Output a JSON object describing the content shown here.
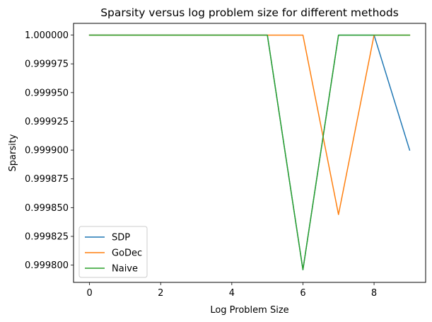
{
  "chart_data": {
    "type": "line",
    "title": "Sparsity versus log problem size for different methods",
    "xlabel": "Log Problem Size",
    "ylabel": "Sparsity",
    "x": [
      0,
      1,
      2,
      3,
      4,
      5,
      6,
      7,
      8,
      9
    ],
    "xlim": [
      -0.45,
      9.45
    ],
    "ylim": [
      0.999785,
      1.0000102
    ],
    "xticks": [
      0,
      2,
      4,
      6,
      8
    ],
    "yticks": [
      0.9998,
      0.999825,
      0.99985,
      0.999875,
      0.9999,
      0.999925,
      0.99995,
      0.999975,
      1.0
    ],
    "ytick_labels": [
      "0.999800",
      "0.999825",
      "0.999850",
      "0.999875",
      "0.999900",
      "0.999925",
      "0.999950",
      "0.999975",
      "1.000000"
    ],
    "grid": false,
    "legend_position": "lower-left",
    "series": [
      {
        "name": "SDP",
        "color": "#1f77b4",
        "values": [
          1.0,
          1.0,
          1.0,
          1.0,
          1.0,
          1.0,
          0.999796,
          1.0,
          1.0,
          0.9999
        ]
      },
      {
        "name": "GoDec",
        "color": "#ff7f0e",
        "values": [
          1.0,
          1.0,
          1.0,
          1.0,
          1.0,
          1.0,
          1.0,
          0.999844,
          1.0,
          1.0
        ]
      },
      {
        "name": "Naive",
        "color": "#2ca02c",
        "values": [
          1.0,
          1.0,
          1.0,
          1.0,
          1.0,
          1.0,
          0.999796,
          1.0,
          1.0,
          1.0
        ]
      }
    ]
  }
}
